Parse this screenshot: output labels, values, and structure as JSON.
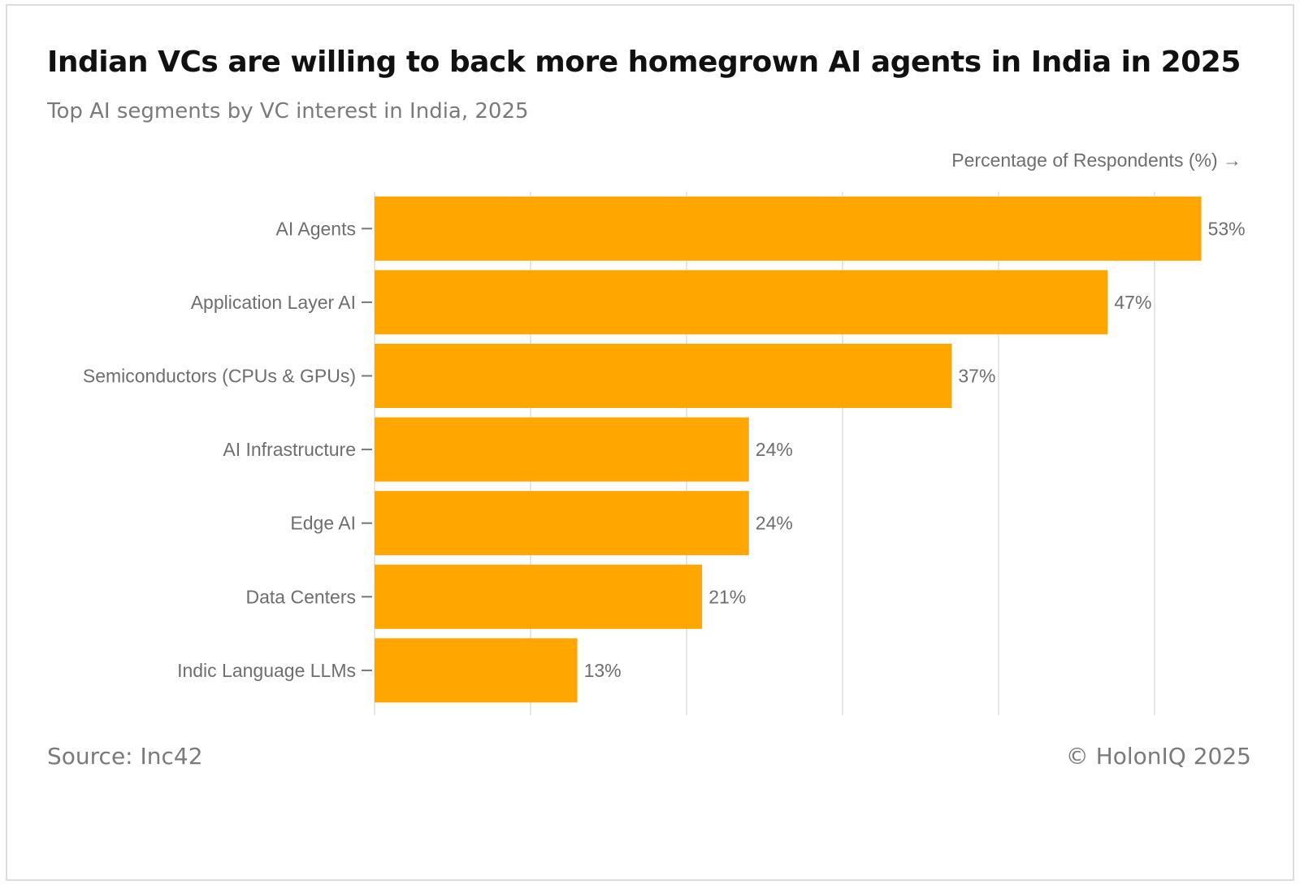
{
  "chart_data": {
    "type": "bar",
    "orientation": "horizontal",
    "title": "Indian VCs are willing to back more homegrown AI agents in India in 2025",
    "subtitle": "Top AI segments by VC interest in India, 2025",
    "xlabel": "Percentage of Respondents (%) →",
    "ylabel": "",
    "categories": [
      "AI Agents",
      "Application Layer AI",
      "Semiconductors (CPUs & GPUs)",
      "AI Infrastructure",
      "Edge AI",
      "Data Centers",
      "Indic Language LLMs"
    ],
    "values": [
      53,
      47,
      37,
      24,
      24,
      21,
      13
    ],
    "value_labels": [
      "53%",
      "47%",
      "37%",
      "24%",
      "24%",
      "21%",
      "13%"
    ],
    "xlim": [
      0,
      56
    ],
    "gridlines": [
      0,
      10,
      20,
      30,
      40,
      50
    ],
    "grid": true,
    "bar_color": "#ffa600",
    "source": "Source: Inc42",
    "copyright": "© HolonIQ 2025"
  }
}
